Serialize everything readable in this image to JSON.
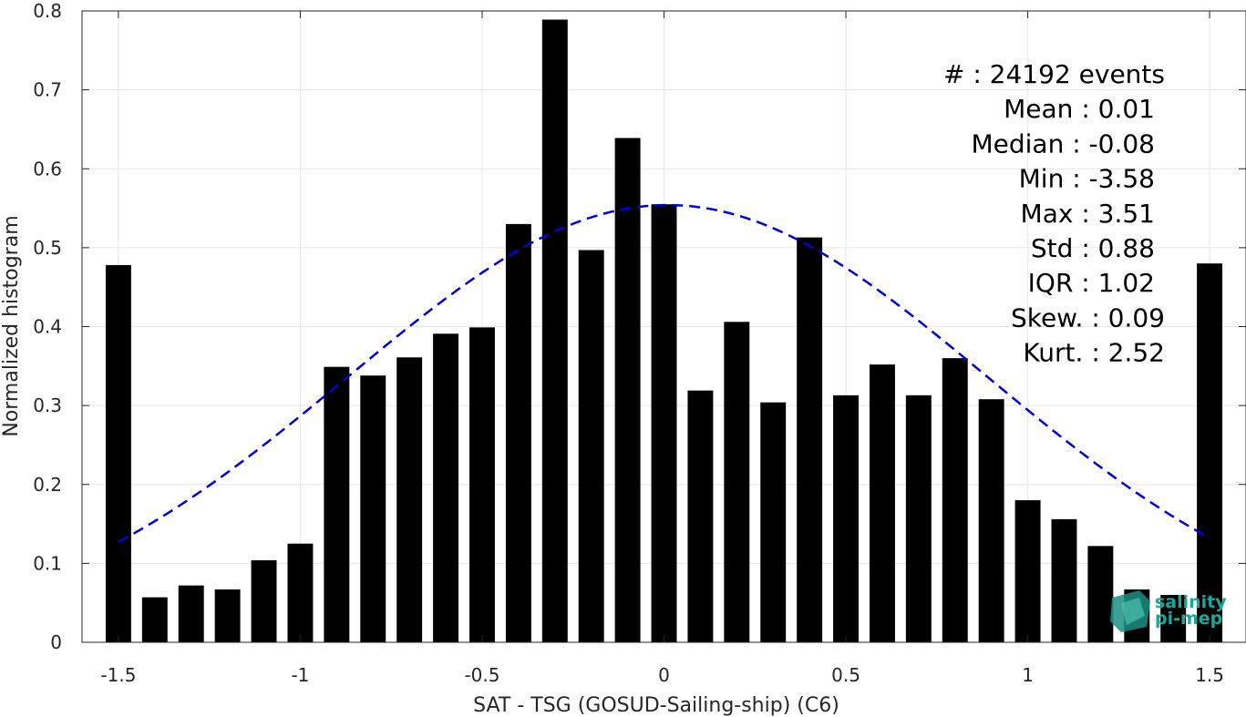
{
  "chart_data": {
    "type": "bar",
    "xlabel": "SAT - TSG (GOSUD-Sailing-ship) (C6)",
    "ylabel": "Normalized histogram",
    "xlim": [
      -1.6,
      1.6
    ],
    "ylim": [
      0,
      0.8
    ],
    "x_ticks": [
      "-1.5",
      "-1",
      "-0.5",
      "0",
      "0.5",
      "1",
      "1.5"
    ],
    "y_ticks": [
      "0",
      "0.1",
      "0.2",
      "0.3",
      "0.4",
      "0.5",
      "0.6",
      "0.7",
      "0.8"
    ],
    "grid": true,
    "bar_color": "#000000",
    "fit_color": "#0000e0",
    "series": [
      {
        "type": "bar",
        "x": [
          -1.5,
          -1.4,
          -1.3,
          -1.2,
          -1.1,
          -1.0,
          -0.9,
          -0.8,
          -0.7,
          -0.6,
          -0.5,
          -0.4,
          -0.3,
          -0.2,
          -0.1,
          0.0,
          0.1,
          0.2,
          0.3,
          0.4,
          0.5,
          0.6,
          0.7,
          0.8,
          0.9,
          1.0,
          1.1,
          1.2,
          1.3,
          1.4,
          1.5
        ],
        "values": [
          0.478,
          0.057,
          0.072,
          0.067,
          0.104,
          0.125,
          0.349,
          0.338,
          0.361,
          0.391,
          0.399,
          0.53,
          0.789,
          0.497,
          0.639,
          0.555,
          0.319,
          0.406,
          0.304,
          0.513,
          0.313,
          0.352,
          0.313,
          0.36,
          0.308,
          0.18,
          0.156,
          0.122,
          0.067,
          0.06,
          0.48
        ]
      },
      {
        "type": "line",
        "style": "dashed",
        "mean": 0.01,
        "std": 0.88,
        "peak": 0.554,
        "x_range": [
          -1.5,
          1.5
        ]
      }
    ],
    "stats": [
      "#  : 24192 events",
      "Mean : 0.01",
      "Median : -0.08",
      "Min : -3.58",
      "Max : 3.51",
      "Std : 0.88",
      "IQR : 1.02",
      "Skew. : 0.09",
      "Kurt. : 2.52"
    ]
  },
  "logo": {
    "line1": "salinity",
    "line2": "pi-mep"
  }
}
